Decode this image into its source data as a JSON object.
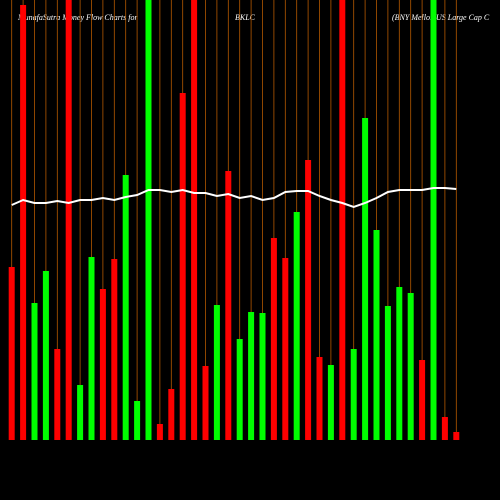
{
  "chart_data": {
    "type": "bar",
    "title_parts": [
      "MunafaSutra  Money Flow  Charts for",
      "BKLC",
      "(BNY Mellon US Large  Cap C"
    ],
    "values": [
      173,
      435,
      137,
      169,
      91,
      440,
      55,
      183,
      151,
      181,
      265,
      39,
      440,
      16,
      51,
      347,
      440,
      74,
      135,
      269,
      101,
      128,
      127,
      202,
      182,
      228,
      280,
      83,
      75,
      440,
      91,
      322,
      210,
      134,
      153,
      147,
      80,
      440,
      23,
      8
    ],
    "colors": [
      "#ff0000",
      "#ff0000",
      "#00ff00",
      "#00ff00",
      "#ff0000",
      "#ff0000",
      "#00ff00",
      "#00ff00",
      "#ff0000",
      "#ff0000",
      "#00ff00",
      "#00ff00",
      "#00ff00",
      "#ff0000",
      "#ff0000",
      "#ff0000",
      "#ff0000",
      "#ff0000",
      "#00ff00",
      "#ff0000",
      "#00ff00",
      "#00ff00",
      "#00ff00",
      "#ff0000",
      "#ff0000",
      "#00ff00",
      "#ff0000",
      "#ff0000",
      "#00ff00",
      "#ff0000",
      "#00ff00",
      "#00ff00",
      "#00ff00",
      "#00ff00",
      "#00ff00",
      "#00ff00",
      "#ff0000",
      "#00ff00",
      "#ff0000",
      "#ff0000"
    ],
    "line": {
      "color": "#ffffff",
      "values": [
        235,
        240,
        237,
        237,
        239,
        237,
        240,
        240,
        242,
        240,
        243,
        245,
        250,
        250,
        248,
        250,
        247,
        247,
        244,
        246,
        242,
        244,
        240,
        242,
        248,
        249,
        249,
        244,
        240,
        237,
        233,
        237,
        242,
        248,
        250,
        250,
        250,
        252,
        252,
        251
      ]
    },
    "ylim": [
      0,
      440
    ],
    "gridline_color": "#b35900"
  }
}
